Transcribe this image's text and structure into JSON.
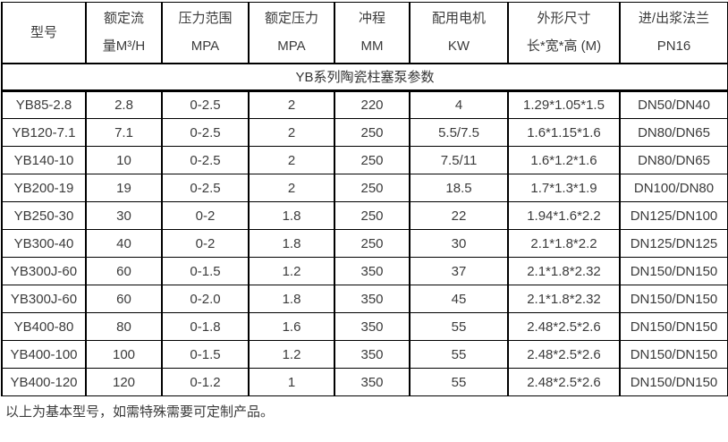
{
  "title": "YB系列陶瓷柱塞泵参数",
  "table": {
    "columns": [
      {
        "lines": [
          "型号"
        ]
      },
      {
        "lines": [
          "额定流",
          "量M³/H"
        ]
      },
      {
        "lines": [
          "压力范围",
          "MPA"
        ]
      },
      {
        "lines": [
          "额定压力",
          "MPA"
        ]
      },
      {
        "lines": [
          "冲程",
          "MM"
        ]
      },
      {
        "lines": [
          "配用电机",
          "KW"
        ]
      },
      {
        "lines": [
          "外形尺寸",
          "长*宽*高 (M)"
        ]
      },
      {
        "lines": [
          "进/出浆法兰",
          "PN16"
        ]
      }
    ],
    "rows": [
      [
        "YB85-2.8",
        "2.8",
        "0-2.5",
        "2",
        "220",
        "4",
        "1.29*1.05*1.5",
        "DN50/DN40"
      ],
      [
        "YB120-7.1",
        "7.1",
        "0-2.5",
        "2",
        "250",
        "5.5/7.5",
        "1.6*1.15*1.6",
        "DN80/DN65"
      ],
      [
        "YB140-10",
        "10",
        "0-2.5",
        "2",
        "250",
        "7.5/11",
        "1.6*1.2*1.6",
        "DN80/DN65"
      ],
      [
        "YB200-19",
        "19",
        "0-2.5",
        "2",
        "250",
        "18.5",
        "1.7*1.3*1.9",
        "DN100/DN80"
      ],
      [
        "YB250-30",
        "30",
        "0-2",
        "1.8",
        "250",
        "22",
        "1.94*1.6*2.2",
        "DN125/DN100"
      ],
      [
        "YB300-40",
        "40",
        "0-2",
        "1.8",
        "250",
        "30",
        "2.1*1.8*2.2",
        "DN125/DN125"
      ],
      [
        "YB300J-60",
        "60",
        "0-1.5",
        "1.2",
        "350",
        "37",
        "2.1*1.8*2.32",
        "DN150/DN150"
      ],
      [
        "YB300J-60",
        "60",
        "0-2.0",
        "1.8",
        "350",
        "45",
        "2.1*1.8*2.32",
        "DN150/DN150"
      ],
      [
        "YB400-80",
        "80",
        "0-1.8",
        "1.6",
        "350",
        "55",
        "2.48*2.5*2.6",
        "DN150/DN150"
      ],
      [
        "YB400-100",
        "100",
        "0-1.5",
        "1.2",
        "350",
        "55",
        "2.48*2.5*2.6",
        "DN150/DN150"
      ],
      [
        "YB400-120",
        "120",
        "0-1.2",
        "1",
        "350",
        "55",
        "2.48*2.5*2.6",
        "DN150/DN150"
      ]
    ]
  },
  "footer_note": "以上为基本型号，如需特殊需要可定制产品。",
  "colors": {
    "border": "#000000",
    "text": "#3b3b3b",
    "background": "#ffffff"
  }
}
